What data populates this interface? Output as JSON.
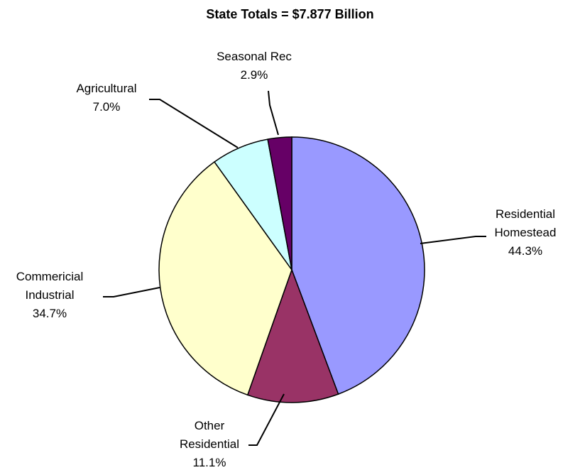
{
  "chart_data": {
    "type": "pie",
    "title": "State Totals = $7.877 Billion",
    "categories": [
      "Residential Homestead",
      "Other Residential",
      "Commericial Industrial",
      "Agricultural",
      "Seasonal Rec"
    ],
    "values": [
      44.3,
      11.1,
      34.7,
      7.0,
      2.9
    ],
    "value_labels": [
      "44.3%",
      "11.1%",
      "34.7%",
      "7.0%",
      "2.9%"
    ],
    "colors": [
      "#9999ff",
      "#993366",
      "#ffffcc",
      "#ccffff",
      "#660066"
    ]
  }
}
